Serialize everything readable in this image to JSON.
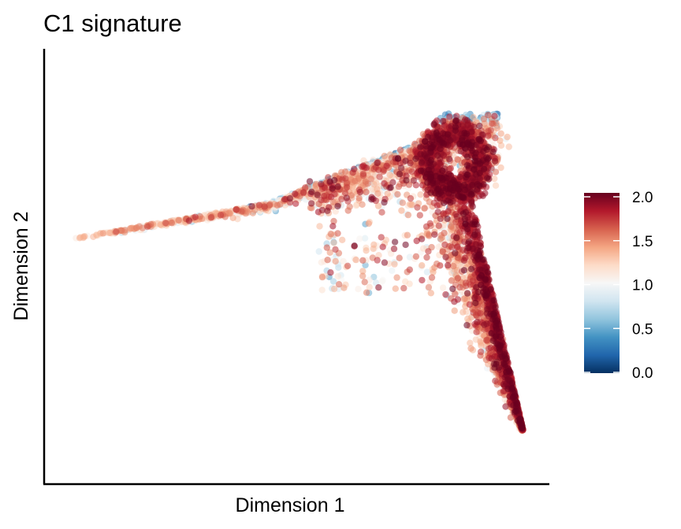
{
  "chart_data": {
    "type": "scatter",
    "title": "C1 signature",
    "xlabel": "Dimension 1",
    "ylabel": "Dimension 2",
    "x_ticks_shown": false,
    "y_ticks_shown": false,
    "grid": false,
    "colorbar": {
      "placement": "right",
      "ticks": [
        "0.0",
        "0.5",
        "1.0",
        "1.5",
        "2.0"
      ],
      "range": [
        0,
        2
      ],
      "colors": [
        "#053061",
        "#2166ac",
        "#4393c3",
        "#92c5de",
        "#d1e5f0",
        "#f7f7f7",
        "#fddbc7",
        "#f4a582",
        "#d6604d",
        "#b2182b",
        "#67001f"
      ]
    },
    "structure": {
      "left_tip": [
        0.0,
        0.0
      ],
      "apex": [
        0.94,
        0.42
      ],
      "bottom_tip": [
        1.0,
        -0.64
      ],
      "junction": [
        0.44,
        0.12
      ]
    },
    "point_count": 5600,
    "point_opacity": 0.55,
    "value_pattern": "low (blue) along the upper left arm and top-right apex; high (red) in the dense right lobe and descending lower arm"
  }
}
